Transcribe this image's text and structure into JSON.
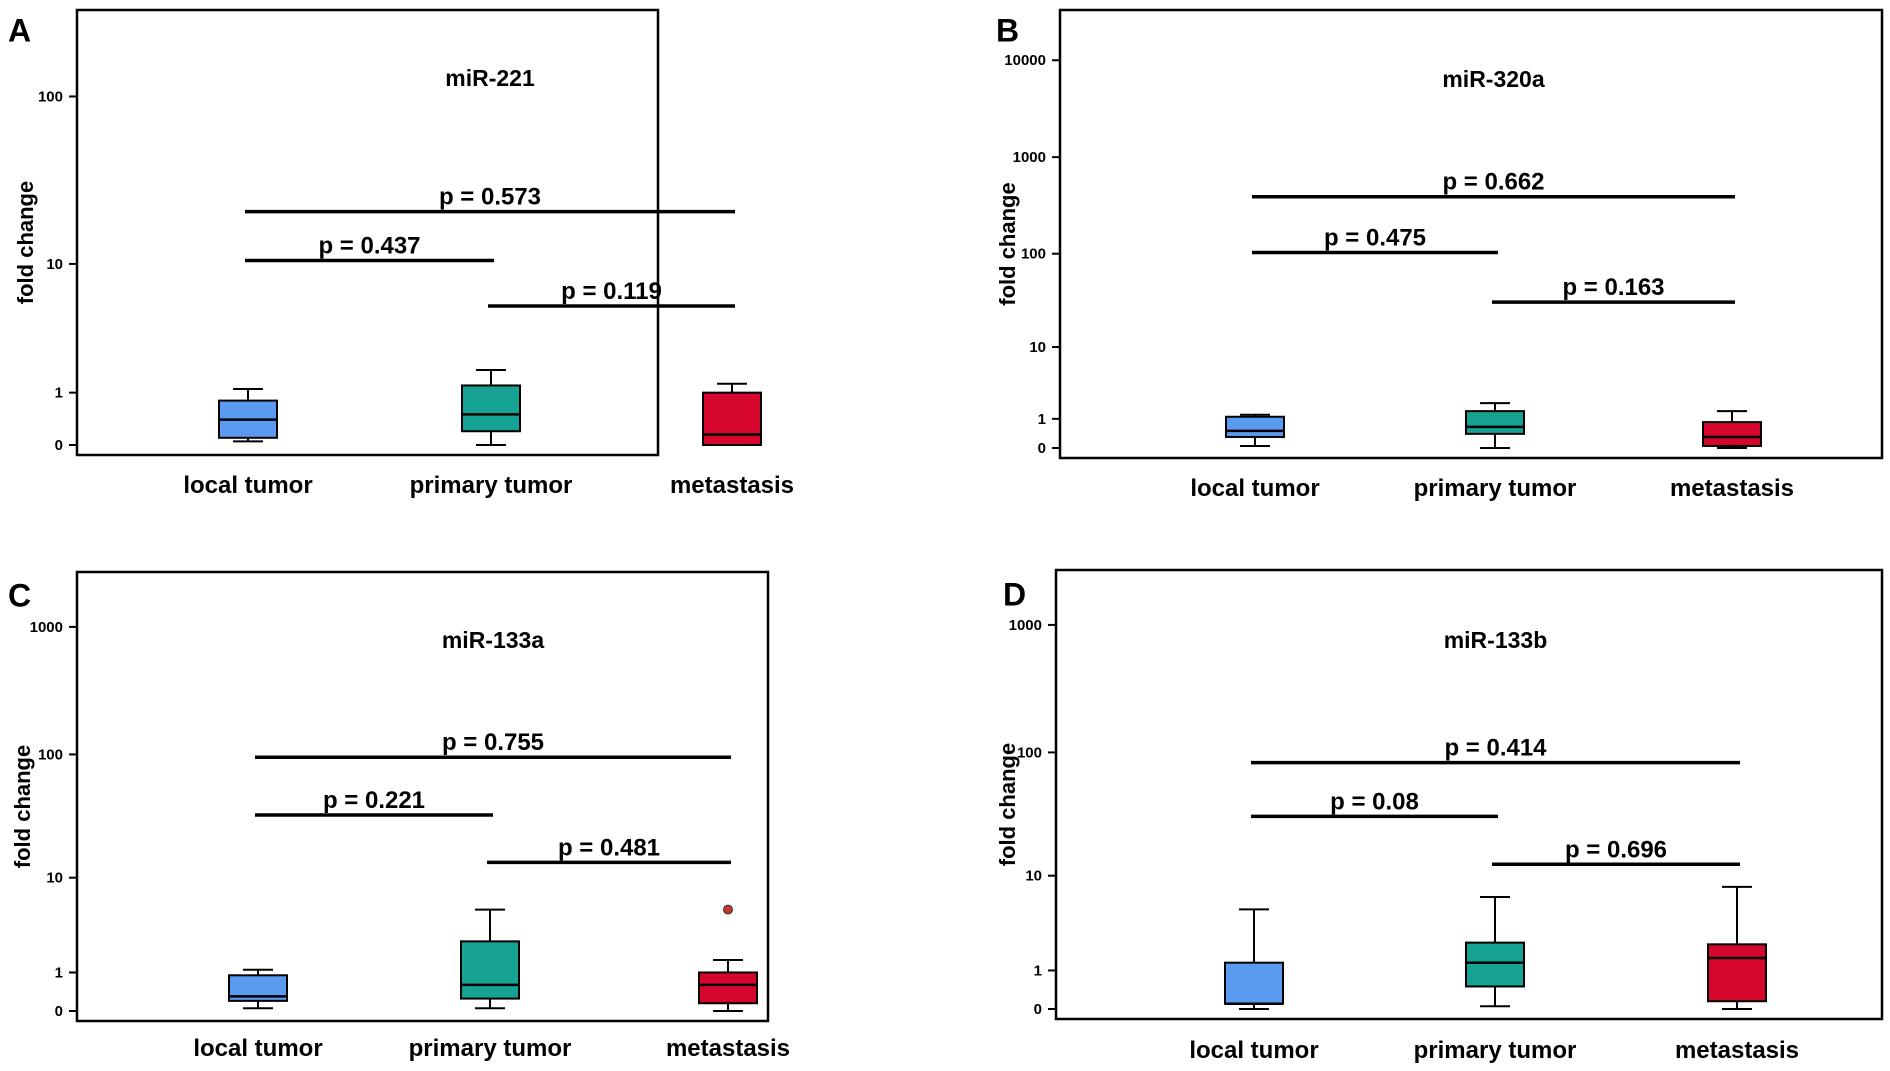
{
  "chart_data": [
    {
      "type": "box",
      "panel_label": "A",
      "title": "miR-221",
      "xlabel": "",
      "ylabel": "fold change",
      "y_scale": "log1p",
      "ylim": [
        0,
        300
      ],
      "yticks": [
        0,
        1,
        10,
        100
      ],
      "ytick_labels": [
        "0",
        "1",
        "10",
        "100"
      ],
      "categories": [
        "local tumor",
        "primary tumor",
        "metastasis"
      ],
      "boxes": [
        {
          "category": "local tumor",
          "min": 0.05,
          "q1": 0.1,
          "median": 0.4,
          "q3": 0.8,
          "max": 1.1
        },
        {
          "category": "primary tumor",
          "min": 0.0,
          "q1": 0.2,
          "median": 0.5,
          "q3": 1.2,
          "max": 1.7
        },
        {
          "category": "metastasis",
          "min": 0.0,
          "q1": 0.0,
          "median": 0.15,
          "q3": 1.0,
          "max": 1.25
        }
      ],
      "outliers": [],
      "comparisons": [
        {
          "from": "local tumor",
          "to": "metastasis",
          "y": 21,
          "label": "p = 0.573"
        },
        {
          "from": "local tumor",
          "to": "primary tumor",
          "y": 10.5,
          "label": "p = 0.437"
        },
        {
          "from": "primary tumor",
          "to": "metastasis",
          "y": 5.3,
          "label": "p = 0.119"
        }
      ]
    },
    {
      "type": "box",
      "panel_label": "B",
      "title": "miR-320a",
      "xlabel": "",
      "ylabel": "fold change",
      "y_scale": "log1p",
      "ylim": [
        0,
        30000
      ],
      "yticks": [
        0,
        1,
        10,
        100,
        1000,
        10000
      ],
      "ytick_labels": [
        "0",
        "1",
        "10",
        "100",
        "1000",
        "10000"
      ],
      "categories": [
        "local tumor",
        "primary tumor",
        "metastasis"
      ],
      "boxes": [
        {
          "category": "local tumor",
          "min": 0.05,
          "q1": 0.3,
          "median": 0.5,
          "q3": 1.1,
          "max": 1.2
        },
        {
          "category": "primary tumor",
          "min": 0.0,
          "q1": 0.4,
          "median": 0.65,
          "q3": 1.4,
          "max": 1.9
        },
        {
          "category": "metastasis",
          "min": 0.0,
          "q1": 0.05,
          "median": 0.3,
          "q3": 0.85,
          "max": 1.4
        }
      ],
      "outliers": [],
      "comparisons": [
        {
          "from": "local tumor",
          "to": "metastasis",
          "y": 390,
          "label": "p = 0.662"
        },
        {
          "from": "local tumor",
          "to": "primary tumor",
          "y": 103,
          "label": "p = 0.475"
        },
        {
          "from": "primary tumor",
          "to": "metastasis",
          "y": 31,
          "label": "p = 0.163"
        }
      ]
    },
    {
      "type": "box",
      "panel_label": "C",
      "title": "miR-133a",
      "xlabel": "",
      "ylabel": "fold change",
      "y_scale": "log1p",
      "ylim": [
        0,
        2500
      ],
      "yticks": [
        0,
        1,
        10,
        100,
        1000
      ],
      "ytick_labels": [
        "0",
        "1",
        "10",
        "100",
        "1000"
      ],
      "categories": [
        "local tumor",
        "primary tumor",
        "metastasis"
      ],
      "boxes": [
        {
          "category": "local tumor",
          "min": 0.05,
          "q1": 0.2,
          "median": 0.3,
          "q3": 0.9,
          "max": 1.1
        },
        {
          "category": "primary tumor",
          "min": 0.05,
          "q1": 0.25,
          "median": 0.6,
          "q3": 2.5,
          "max": 5.2
        },
        {
          "category": "metastasis",
          "min": 0.0,
          "q1": 0.15,
          "median": 0.6,
          "q3": 1.0,
          "max": 1.5
        }
      ],
      "outliers": [
        {
          "category": "metastasis",
          "value": 5.2
        }
      ],
      "comparisons": [
        {
          "from": "local tumor",
          "to": "metastasis",
          "y": 95,
          "label": "p = 0.755"
        },
        {
          "from": "local tumor",
          "to": "primary tumor",
          "y": 33,
          "label": "p = 0.221"
        },
        {
          "from": "primary tumor",
          "to": "metastasis",
          "y": 13.5,
          "label": "p = 0.481"
        }
      ]
    },
    {
      "type": "box",
      "panel_label": "D",
      "title": "miR-133b",
      "xlabel": "",
      "ylabel": "fold change",
      "y_scale": "log1p",
      "ylim": [
        0,
        2500
      ],
      "yticks": [
        0,
        1,
        10,
        100,
        1000
      ],
      "ytick_labels": [
        "0",
        "1",
        "10",
        "100",
        "1000"
      ],
      "categories": [
        "local tumor",
        "primary tumor",
        "metastasis"
      ],
      "boxes": [
        {
          "category": "local tumor",
          "min": 0.0,
          "q1": 0.1,
          "median": 0.1,
          "q3": 1.3,
          "max": 5.0
        },
        {
          "category": "primary tumor",
          "min": 0.05,
          "q1": 0.5,
          "median": 1.3,
          "q3": 2.3,
          "max": 6.5
        },
        {
          "category": "metastasis",
          "min": 0.0,
          "q1": 0.15,
          "median": 1.5,
          "q3": 2.2,
          "max": 8.0
        }
      ],
      "outliers": [],
      "comparisons": [
        {
          "from": "local tumor",
          "to": "metastasis",
          "y": 83,
          "label": "p = 0.414"
        },
        {
          "from": "local tumor",
          "to": "primary tumor",
          "y": 31,
          "label": "p = 0.08"
        },
        {
          "from": "primary tumor",
          "to": "metastasis",
          "y": 12.5,
          "label": "p = 0.696"
        }
      ]
    }
  ],
  "colors": {
    "local tumor": "#5b9bef",
    "primary tumor": "#17a394",
    "metastasis": "#d6062f",
    "outlier": "#c0392b",
    "ink": "#000000"
  }
}
